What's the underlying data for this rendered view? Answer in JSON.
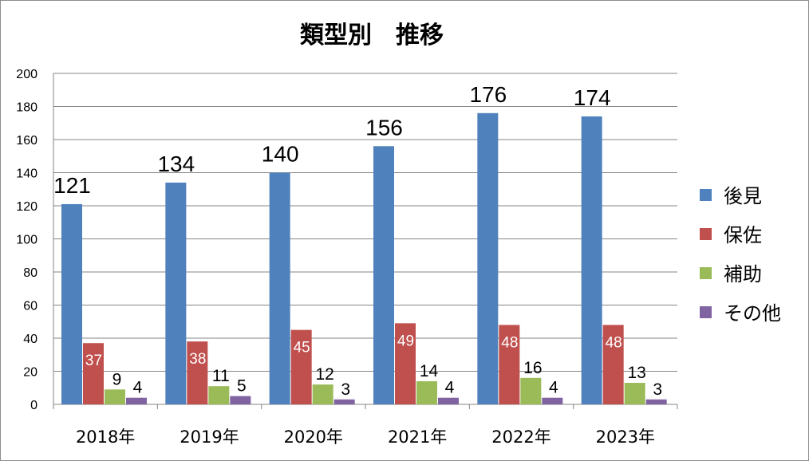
{
  "chart_data": {
    "type": "bar",
    "title": "類型別　推移",
    "categories": [
      "2018年",
      "2019年",
      "2020年",
      "2021年",
      "2022年",
      "2023年"
    ],
    "series": [
      {
        "name": "後見",
        "color": "#4F81BD",
        "values": [
          121,
          134,
          140,
          156,
          176,
          174
        ]
      },
      {
        "name": "保佐",
        "color": "#C0504D",
        "values": [
          37,
          38,
          45,
          49,
          48,
          48
        ]
      },
      {
        "name": "補助",
        "color": "#9BBB59",
        "values": [
          9,
          11,
          12,
          14,
          16,
          13
        ]
      },
      {
        "name": "その他",
        "color": "#8064A2",
        "values": [
          4,
          5,
          3,
          4,
          4,
          3
        ]
      }
    ],
    "ylim": [
      0,
      200
    ],
    "yticks": [
      "0",
      "20",
      "40",
      "60",
      "80",
      "100",
      "120",
      "140",
      "160",
      "180",
      "200"
    ],
    "grid": true,
    "legend": "right"
  }
}
